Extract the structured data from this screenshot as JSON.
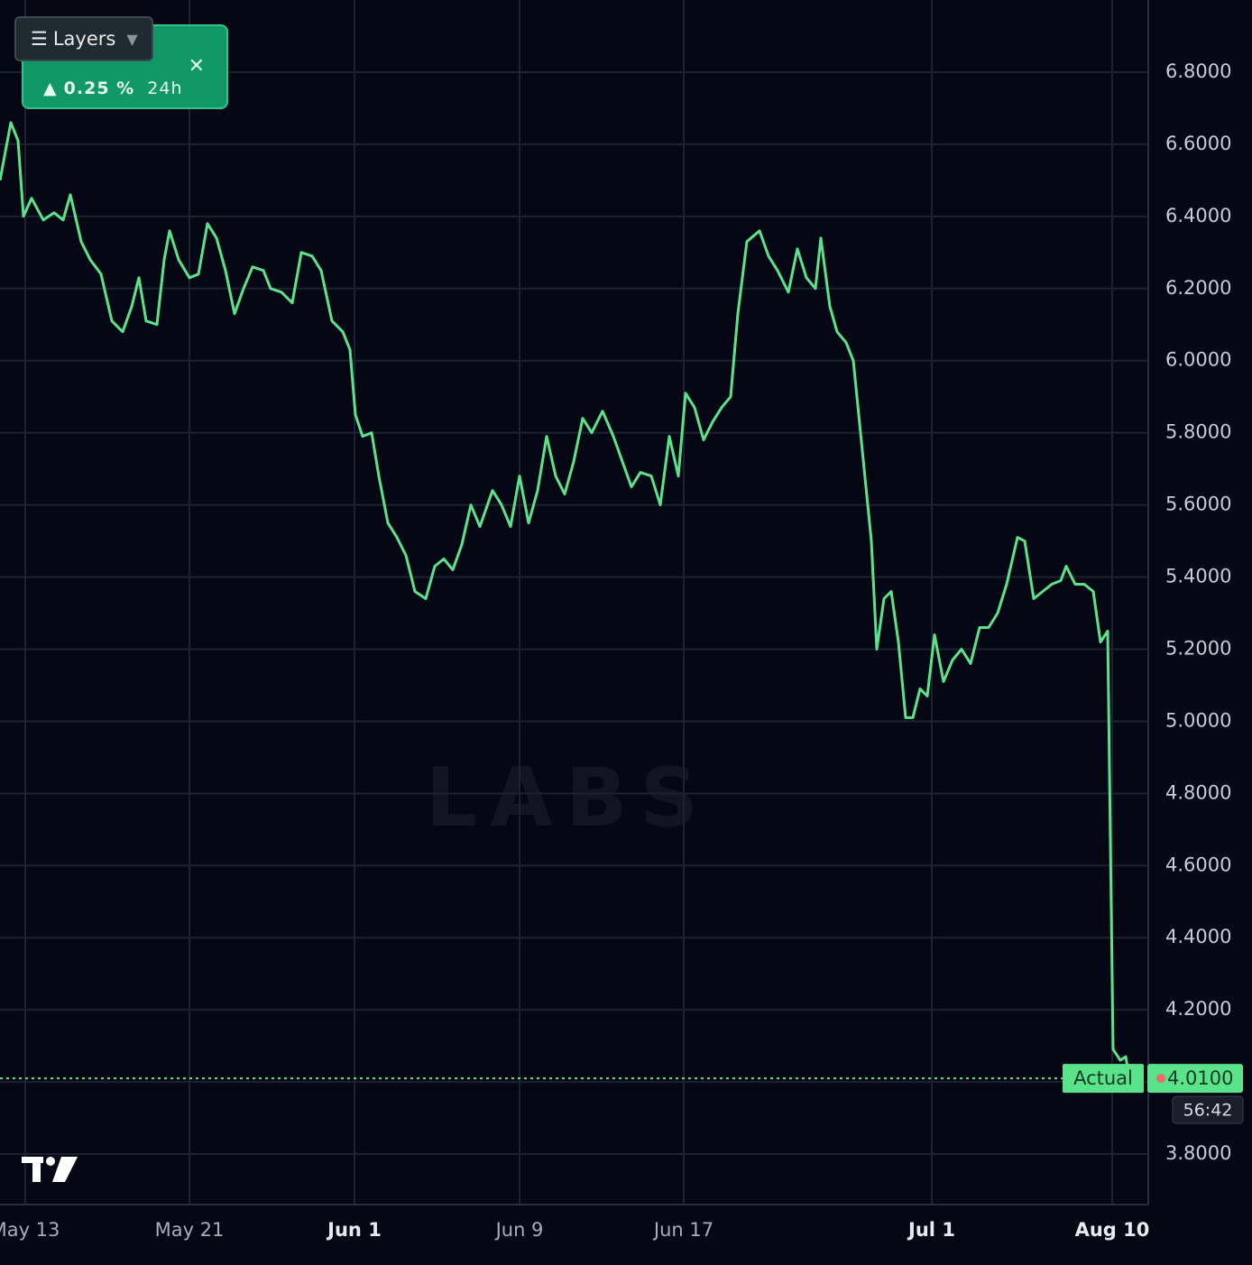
{
  "chart_data": {
    "type": "line",
    "watermark": "LABS",
    "layers_button": "Layers",
    "change": "0.25 %",
    "change_period": "24h",
    "last_label": "Actual",
    "last_price": {
      "value": 4.01,
      "label": "4.0100"
    },
    "countdown": "56:42",
    "xlim": [
      0,
      1273
    ],
    "ylim": [
      3.66,
      7.0
    ],
    "grid": true,
    "xticks": [
      {
        "value": 28,
        "label": "May 13"
      },
      {
        "value": 210,
        "label": "May 21"
      },
      {
        "value": 393,
        "label": "Jun 1"
      },
      {
        "value": 576,
        "label": "Jun 9"
      },
      {
        "value": 758,
        "label": "Jun 17"
      },
      {
        "value": 1033,
        "label": "Jul 1"
      },
      {
        "value": 1233,
        "label": "Aug 10"
      }
    ],
    "yticks": [
      {
        "value": 3.8,
        "label": "3.8000"
      },
      {
        "value": 4.0,
        "label": "4.0000"
      },
      {
        "value": 4.2,
        "label": "4.2000"
      },
      {
        "value": 4.4,
        "label": "4.4000"
      },
      {
        "value": 4.6,
        "label": "4.6000"
      },
      {
        "value": 4.8,
        "label": "4.8000"
      },
      {
        "value": 5.0,
        "label": "5.0000"
      },
      {
        "value": 5.2,
        "label": "5.2000"
      },
      {
        "value": 5.4,
        "label": "5.4000"
      },
      {
        "value": 5.6,
        "label": "5.6000"
      },
      {
        "value": 5.8,
        "label": "5.8000"
      },
      {
        "value": 6.0,
        "label": "6.0000"
      },
      {
        "value": 6.2,
        "label": "6.2000"
      },
      {
        "value": 6.4,
        "label": "6.4000"
      },
      {
        "value": 6.6,
        "label": "6.6000"
      },
      {
        "value": 6.8,
        "label": "6.8000"
      }
    ],
    "color": "#5be38c",
    "x": [
      0,
      12,
      20,
      26,
      35,
      48,
      60,
      70,
      78,
      90,
      100,
      112,
      124,
      136,
      146,
      154,
      162,
      174,
      182,
      188,
      198,
      210,
      220,
      230,
      240,
      250,
      260,
      270,
      280,
      292,
      300,
      312,
      324,
      334,
      346,
      356,
      368,
      380,
      388,
      394,
      402,
      412,
      420,
      430,
      440,
      450,
      460,
      472,
      482,
      492,
      502,
      512,
      522,
      532,
      546,
      556,
      566,
      576,
      586,
      596,
      606,
      616,
      626,
      636,
      646,
      656,
      668,
      680,
      690,
      700,
      710,
      722,
      732,
      742,
      752,
      760,
      770,
      780,
      790,
      800,
      810,
      818,
      828,
      842,
      852,
      862,
      874,
      884,
      894,
      904,
      910,
      920,
      928,
      938,
      946,
      954,
      962,
      966,
      972,
      980,
      988,
      996,
      1004,
      1012,
      1020,
      1028,
      1036,
      1046,
      1056,
      1066,
      1076,
      1086,
      1096,
      1106,
      1116,
      1128,
      1136,
      1146,
      1156,
      1166,
      1176,
      1182,
      1192,
      1202,
      1212,
      1220,
      1228,
      1234,
      1242,
      1248,
      1252
    ],
    "values": [
      6.5,
      6.66,
      6.61,
      6.4,
      6.45,
      6.39,
      6.41,
      6.39,
      6.46,
      6.33,
      6.28,
      6.24,
      6.11,
      6.08,
      6.15,
      6.23,
      6.11,
      6.1,
      6.28,
      6.36,
      6.28,
      6.23,
      6.24,
      6.38,
      6.34,
      6.25,
      6.13,
      6.2,
      6.26,
      6.25,
      6.2,
      6.19,
      6.16,
      6.3,
      6.29,
      6.25,
      6.11,
      6.08,
      6.03,
      5.85,
      5.79,
      5.8,
      5.68,
      5.55,
      5.51,
      5.46,
      5.36,
      5.34,
      5.43,
      5.45,
      5.42,
      5.49,
      5.6,
      5.54,
      5.64,
      5.6,
      5.54,
      5.68,
      5.55,
      5.64,
      5.79,
      5.68,
      5.63,
      5.72,
      5.84,
      5.8,
      5.86,
      5.79,
      5.72,
      5.65,
      5.69,
      5.68,
      5.6,
      5.79,
      5.68,
      5.91,
      5.87,
      5.78,
      5.83,
      5.87,
      5.9,
      6.13,
      6.33,
      6.36,
      6.29,
      6.25,
      6.19,
      6.31,
      6.23,
      6.2,
      6.34,
      6.15,
      6.08,
      6.05,
      6.0,
      5.8,
      5.6,
      5.5,
      5.2,
      5.34,
      5.36,
      5.22,
      5.01,
      5.01,
      5.09,
      5.07,
      5.24,
      5.11,
      5.17,
      5.2,
      5.16,
      5.26,
      5.26,
      5.3,
      5.38,
      5.51,
      5.5,
      5.34,
      5.36,
      5.38,
      5.39,
      5.43,
      5.38,
      5.38,
      5.36,
      5.22,
      5.25,
      4.09,
      4.06,
      4.07,
      4.01
    ]
  }
}
